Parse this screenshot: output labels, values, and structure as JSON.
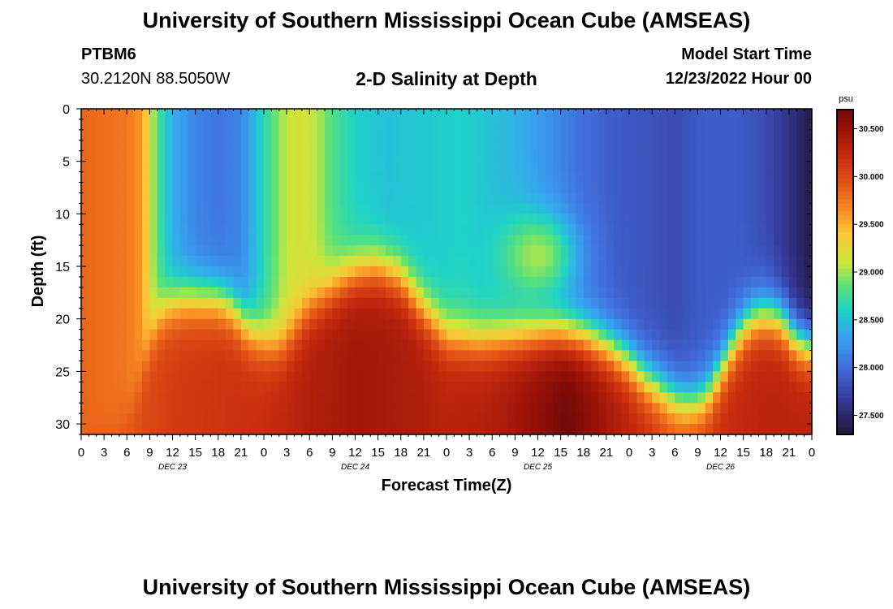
{
  "header": {
    "title": "University of Southern Mississippi Ocean Cube (AMSEAS)",
    "station": "PTBM6",
    "coords": "30.2120N  88.5050W",
    "subtitle": "2-D Salinity at Depth",
    "start_label": "Model Start Time",
    "start_value": "12/23/2022 Hour 00"
  },
  "footer": {
    "title": "University of Southern Mississippi Ocean Cube (AMSEAS)"
  },
  "chart_data": {
    "type": "heatmap",
    "title": "2-D Salinity at Depth",
    "xlabel": "Forecast Time(Z)",
    "ylabel": "Depth (ft)",
    "x_unit": "hours from 12/23/2022 00Z",
    "x_range": [
      0,
      96
    ],
    "x_tick_step_hours": 3,
    "x_tick_labels": [
      "0",
      "3",
      "6",
      "9",
      "12",
      "15",
      "18",
      "21",
      "0",
      "3",
      "6",
      "9",
      "12",
      "15",
      "18",
      "21",
      "0",
      "3",
      "6",
      "9",
      "12",
      "15",
      "18",
      "21",
      "0",
      "3",
      "6",
      "9",
      "12",
      "15",
      "18",
      "21",
      "0"
    ],
    "date_labels": [
      {
        "label": "DEC 23",
        "hour": 12
      },
      {
        "label": "DEC 24",
        "hour": 36
      },
      {
        "label": "DEC 25",
        "hour": 60
      },
      {
        "label": "DEC 26",
        "hour": 84
      }
    ],
    "y_range": [
      0,
      31
    ],
    "y_ticks": [
      0,
      5,
      10,
      15,
      20,
      25,
      30
    ],
    "y_inverted": true,
    "colorbar": {
      "unit": "psu",
      "range": [
        27.3,
        30.7
      ],
      "ticks": [
        27.5,
        28.0,
        28.5,
        29.0,
        29.5,
        30.0,
        30.5
      ],
      "tick_labels": [
        "27.500",
        "28.000",
        "28.500",
        "29.000",
        "29.500",
        "30.000",
        "30.500"
      ]
    },
    "surface_salinity": [
      [
        0,
        29.85
      ],
      [
        3,
        29.8
      ],
      [
        6,
        29.75
      ],
      [
        8,
        29.6
      ],
      [
        9,
        29.2
      ],
      [
        10,
        28.8
      ],
      [
        12,
        28.4
      ],
      [
        15,
        28.15
      ],
      [
        18,
        28.05
      ],
      [
        21,
        28.15
      ],
      [
        23,
        28.5
      ],
      [
        25,
        28.8
      ],
      [
        27,
        29.1
      ],
      [
        29,
        29.15
      ],
      [
        31,
        29.05
      ],
      [
        33,
        28.8
      ],
      [
        36,
        28.6
      ],
      [
        40,
        28.5
      ],
      [
        45,
        28.55
      ],
      [
        50,
        28.6
      ],
      [
        54,
        28.5
      ],
      [
        58,
        28.4
      ],
      [
        62,
        28.2
      ],
      [
        66,
        28.0
      ],
      [
        70,
        27.9
      ],
      [
        74,
        27.85
      ],
      [
        78,
        27.8
      ],
      [
        82,
        27.9
      ],
      [
        86,
        27.9
      ],
      [
        90,
        27.8
      ],
      [
        93,
        27.6
      ],
      [
        96,
        27.35
      ]
    ],
    "interface_depth_ft": [
      [
        0,
        31
      ],
      [
        4,
        31
      ],
      [
        7,
        28
      ],
      [
        9,
        22
      ],
      [
        10,
        20
      ],
      [
        11,
        19
      ],
      [
        12,
        18.5
      ],
      [
        14,
        18
      ],
      [
        18,
        18
      ],
      [
        20,
        19
      ],
      [
        22,
        21
      ],
      [
        24,
        22
      ],
      [
        26,
        22.5
      ],
      [
        27,
        22
      ],
      [
        30,
        19
      ],
      [
        33,
        17
      ],
      [
        36,
        15.5
      ],
      [
        39,
        15
      ],
      [
        42,
        16
      ],
      [
        45,
        19
      ],
      [
        48,
        21.5
      ],
      [
        52,
        22
      ],
      [
        58,
        21.5
      ],
      [
        62,
        21
      ],
      [
        66,
        21.5
      ],
      [
        69,
        22.5
      ],
      [
        72,
        24
      ],
      [
        74,
        25.5
      ],
      [
        76,
        26.5
      ],
      [
        78,
        27.5
      ],
      [
        80,
        28
      ],
      [
        82,
        27.5
      ],
      [
        84,
        25
      ],
      [
        86,
        22
      ],
      [
        88,
        20
      ],
      [
        90,
        19.5
      ],
      [
        92,
        20
      ],
      [
        94,
        22
      ],
      [
        96,
        22.5
      ]
    ],
    "bottom_salinity": [
      [
        0,
        29.85
      ],
      [
        6,
        29.95
      ],
      [
        12,
        30.1
      ],
      [
        24,
        30.2
      ],
      [
        30,
        30.35
      ],
      [
        36,
        30.45
      ],
      [
        42,
        30.4
      ],
      [
        48,
        30.3
      ],
      [
        54,
        30.35
      ],
      [
        60,
        30.55
      ],
      [
        64,
        30.7
      ],
      [
        68,
        30.5
      ],
      [
        72,
        30.3
      ],
      [
        78,
        30.0
      ],
      [
        84,
        30.2
      ],
      [
        90,
        30.3
      ],
      [
        96,
        30.3
      ]
    ],
    "midwater_bump": {
      "hour": 60,
      "depth_ft": 14,
      "salinity": 29.1
    }
  }
}
